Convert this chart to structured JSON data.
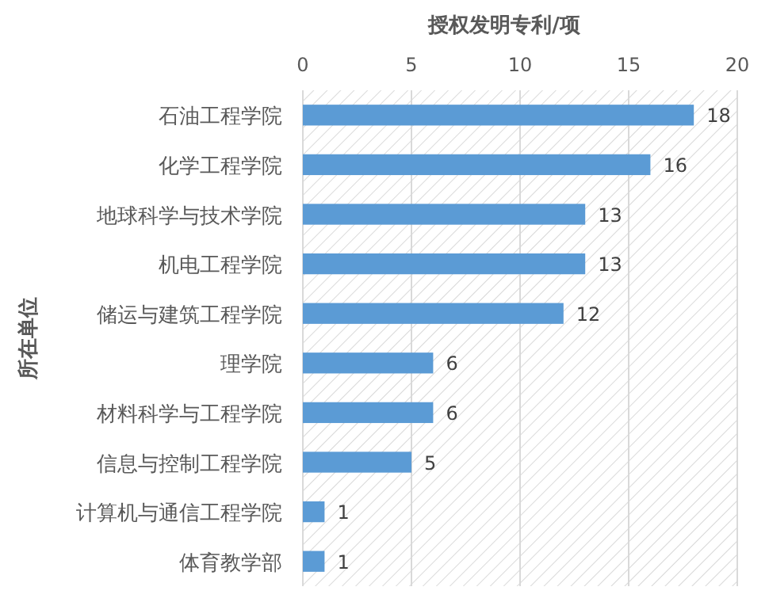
{
  "chart_data": {
    "type": "bar",
    "orientation": "horizontal",
    "xlabel": "授权发明专利/项",
    "ylabel": "所在单位",
    "categories": [
      "石油工程学院",
      "化学工程学院",
      "地球科学与技术学院",
      "机电工程学院",
      "储运与建筑工程学院",
      "理学院",
      "材料科学与工程学院",
      "信息与控制工程学院",
      "计算机与通信工程学院",
      "体育教学部"
    ],
    "values": [
      18,
      16,
      13,
      13,
      12,
      6,
      6,
      5,
      1,
      1
    ],
    "color": "#5b9bd5",
    "xlim": [
      0,
      20
    ],
    "xticks": [
      0,
      5,
      10,
      15,
      20
    ],
    "grid": "x",
    "data_labels": true
  }
}
